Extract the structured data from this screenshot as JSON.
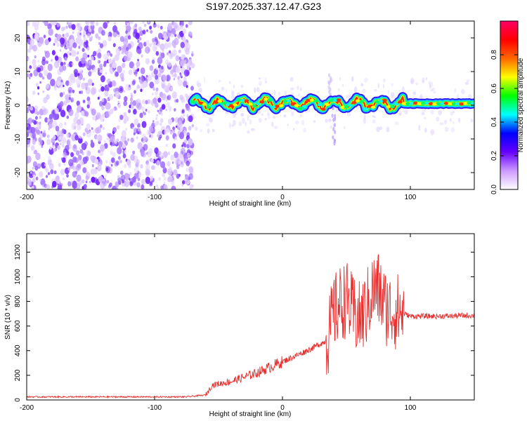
{
  "title": "S197.2025.337.12.47.G23",
  "chart_data": [
    {
      "type": "heatmap",
      "title": "S197.2025.337.12.47.G23",
      "xlabel": "Height of straight line (km)",
      "ylabel": "Frequency (Hz)",
      "xlim": [
        -200,
        150
      ],
      "ylim": [
        -25,
        25
      ],
      "x_ticks": [
        -200,
        -100,
        0,
        100
      ],
      "y_ticks": [
        -20,
        -10,
        0,
        10,
        20
      ],
      "colorbar": {
        "label": "Normalized spectral amplitude",
        "range": [
          0,
          1
        ],
        "ticks": [
          0.0,
          0.2,
          0.4,
          0.6,
          0.8
        ],
        "tick_labels": [
          "0.0",
          "0.2",
          "0.4",
          "0.6",
          "0.8"
        ],
        "colors": [
          "#ffffff",
          "#cc99ff",
          "#6600ff",
          "#0000ff",
          "#00ffff",
          "#00ff00",
          "#ffff00",
          "#ff6600",
          "#ff0000",
          "#ff0066"
        ]
      },
      "noise_region_x": [
        -200,
        -70
      ],
      "ridge_region_x": [
        -70,
        150
      ],
      "ridge_frequency_hz": 0.5
    },
    {
      "type": "line",
      "xlabel": "Height of straight line (km)",
      "ylabel": "SNR (10 * v/v)",
      "xlim": [
        -200,
        150
      ],
      "ylim": [
        0,
        1350
      ],
      "x_ticks": [
        -200,
        -100,
        0,
        100
      ],
      "y_ticks": [
        0,
        200,
        400,
        600,
        800,
        1000,
        1200
      ],
      "series": [
        {
          "name": "SNR",
          "color": "#e83030",
          "x": [
            -200,
            -150,
            -100,
            -75,
            -60,
            -55,
            -40,
            -20,
            0,
            15,
            25,
            30,
            33,
            36,
            40,
            45,
            50,
            55,
            60,
            65,
            70,
            75,
            80,
            85,
            90,
            95,
            100,
            110,
            120,
            130,
            140,
            150
          ],
          "values": [
            25,
            25,
            25,
            25,
            40,
            120,
            150,
            220,
            310,
            380,
            430,
            460,
            470,
            520,
            700,
            780,
            820,
            700,
            650,
            720,
            880,
            900,
            760,
            720,
            720,
            700,
            680,
            680,
            680,
            680,
            685,
            685
          ]
        }
      ]
    }
  ]
}
